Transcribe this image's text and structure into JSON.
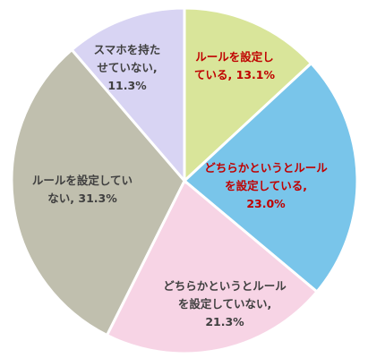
{
  "chart_data": {
    "type": "pie",
    "title": "",
    "slices": [
      {
        "lines": [
          "ルールを設定し",
          "ている, 13.1%"
        ],
        "value": 13.1,
        "color": "#d9e59a",
        "text_color": "#c00000"
      },
      {
        "lines": [
          "どちらかというとルール",
          "を設定している,",
          "23.0%"
        ],
        "value": 23.0,
        "color": "#79c5ea",
        "text_color": "#c00000"
      },
      {
        "lines": [
          "どちらかというとルール",
          "を設定していない,",
          "21.3%"
        ],
        "value": 21.3,
        "color": "#f7d4e5",
        "text_color": "#404040"
      },
      {
        "lines": [
          "ルールを設定してい",
          "ない, 31.3%"
        ],
        "value": 31.3,
        "color": "#c0bfae",
        "text_color": "#404040"
      },
      {
        "lines": [
          "スマホを持た",
          "せていない,",
          "11.3%"
        ],
        "value": 11.3,
        "color": "#d8d4f3",
        "text_color": "#404040"
      }
    ],
    "start_angle_deg": 0,
    "direction": "clockwise",
    "legend": "none",
    "labels": "inside"
  }
}
